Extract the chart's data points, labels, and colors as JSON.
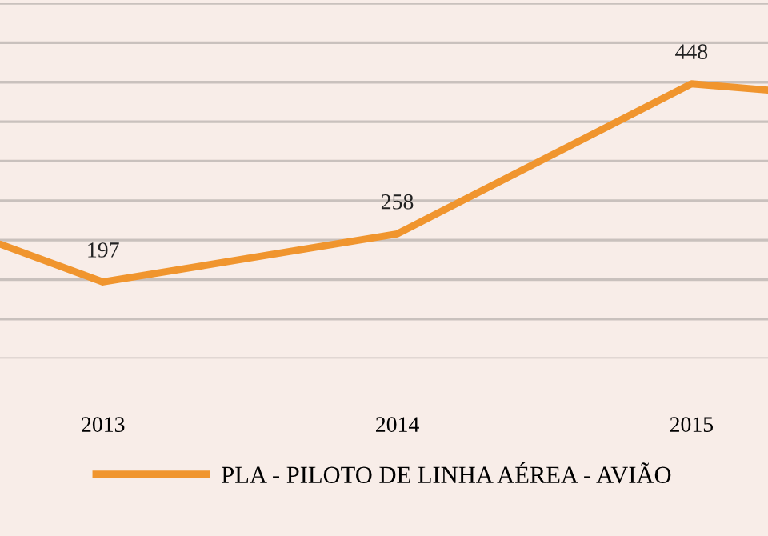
{
  "chart_data": {
    "type": "line",
    "x": [
      2012.65,
      2013,
      2014,
      2015,
      2015.26
    ],
    "series": [
      {
        "name": "PLA - PILOTO DE LINHA AÉREA - AVIÃO",
        "color": "#f0952e",
        "values": [
          245,
          197,
          258,
          448,
          440
        ],
        "value_labels": [
          null,
          "197",
          "258",
          "448",
          null
        ]
      }
    ],
    "xlim": [
      2012.65,
      2015.26
    ],
    "xticks": [
      2013,
      2014,
      2015
    ],
    "ylim": [
      100,
      550
    ],
    "yticks": [
      {
        "value": 100,
        "label": null
      },
      {
        "value": 150,
        "label": null
      },
      {
        "value": 200,
        "label": null
      },
      {
        "value": 250,
        "label": null
      },
      {
        "value": 300,
        "label": null
      },
      {
        "value": 350,
        "label": null
      },
      {
        "value": 400,
        "label": null
      },
      {
        "value": 450,
        "label": null
      },
      {
        "value": 500,
        "label": null
      },
      {
        "value": 550,
        "label": null
      }
    ],
    "grid": "y",
    "tick_labels": "x",
    "legend": "bottom",
    "marker": "none",
    "line_style": "solid"
  }
}
